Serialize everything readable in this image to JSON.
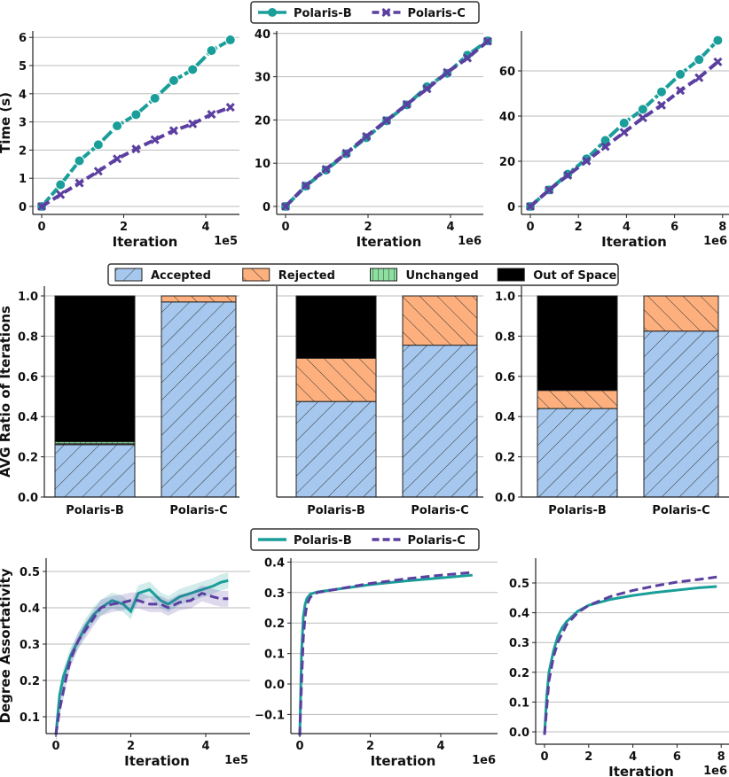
{
  "colors": {
    "Polaris-B": "#1a9e9a",
    "Polaris-C": "#5b3fa0",
    "Accepted": "#a6c8ee",
    "Rejected": "#fdb07e",
    "Unchanged": "#8ee0a0",
    "Out of Space": "#cdb6f5"
  },
  "legends": {
    "row1": [
      "Polaris-B",
      "Polaris-C"
    ],
    "row2": [
      "Accepted",
      "Rejected",
      "Unchanged",
      "Out of Space"
    ],
    "row3": [
      "Polaris-B",
      "Polaris-C"
    ]
  },
  "chart_data": [
    {
      "type": "line",
      "row": 1,
      "xlabel": "Iteration",
      "x_scale_label": "1e5",
      "ylabel": "Time (s)",
      "xticks": [
        "0",
        "2",
        "4"
      ],
      "yticks": [
        "0",
        "1",
        "2",
        "3",
        "4",
        "5",
        "6"
      ],
      "grid": "y",
      "markers": {
        "Polaris-B": "circle",
        "Polaris-C": "x"
      },
      "x": [
        0,
        0.46,
        0.92,
        1.38,
        1.84,
        2.3,
        2.76,
        3.22,
        3.68,
        4.14,
        4.6
      ],
      "series": [
        {
          "name": "Polaris-B",
          "values": [
            0,
            0.77,
            1.62,
            2.19,
            2.86,
            3.26,
            3.84,
            4.47,
            4.86,
            5.53,
            5.91
          ]
        },
        {
          "name": "Polaris-C",
          "values": [
            0,
            0.42,
            0.83,
            1.25,
            1.69,
            2.04,
            2.37,
            2.69,
            2.93,
            3.27,
            3.52
          ]
        }
      ]
    },
    {
      "type": "line",
      "row": 1,
      "xlabel": "Iteration",
      "x_scale_label": "1e6",
      "ylabel": "",
      "xticks": [
        "0",
        "2",
        "4"
      ],
      "yticks": [
        "0",
        "10",
        "20",
        "30",
        "40"
      ],
      "grid": "y",
      "markers": {
        "Polaris-B": "circle",
        "Polaris-C": "x"
      },
      "x": [
        0,
        0.49,
        0.98,
        1.47,
        1.96,
        2.45,
        2.94,
        3.43,
        3.92,
        4.41,
        4.9
      ],
      "series": [
        {
          "name": "Polaris-B",
          "values": [
            0,
            4.7,
            8.4,
            12.2,
            15.9,
            19.8,
            23.5,
            27.7,
            30.8,
            35.0,
            38.3
          ]
        },
        {
          "name": "Polaris-C",
          "values": [
            0,
            4.8,
            8.6,
            12.3,
            16.2,
            19.9,
            23.6,
            27.2,
            31.0,
            34.3,
            38.2
          ]
        }
      ]
    },
    {
      "type": "line",
      "row": 1,
      "xlabel": "Iteration",
      "x_scale_label": "1e6",
      "ylabel": "",
      "xticks": [
        "0",
        "2",
        "4",
        "6",
        "8"
      ],
      "yticks": [
        "0",
        "20",
        "40",
        "60"
      ],
      "grid": "y",
      "markers": {
        "Polaris-B": "circle",
        "Polaris-C": "x"
      },
      "x": [
        0,
        0.78,
        1.56,
        2.34,
        3.12,
        3.9,
        4.68,
        5.46,
        6.24,
        7.02,
        7.8
      ],
      "series": [
        {
          "name": "Polaris-B",
          "values": [
            0,
            7.3,
            14.3,
            21.1,
            29.2,
            36.9,
            43.0,
            50.7,
            58.5,
            65.0,
            73.5
          ]
        },
        {
          "name": "Polaris-C",
          "values": [
            0,
            7.3,
            13.8,
            20.1,
            26.5,
            32.8,
            39.2,
            44.8,
            51.3,
            57.0,
            64.0
          ]
        }
      ]
    },
    {
      "type": "bar",
      "stacked": true,
      "row": 2,
      "ylabel": "AVG Ratio of Iterations",
      "categories": [
        "Polaris-B",
        "Polaris-C"
      ],
      "yticks": [
        "0.0",
        "0.2",
        "0.4",
        "0.6",
        "0.8",
        "1.0"
      ],
      "grid": "y",
      "series": [
        {
          "name": "Accepted",
          "values": [
            0.26,
            0.97
          ]
        },
        {
          "name": "Rejected",
          "values": [
            0.005,
            0.03
          ]
        },
        {
          "name": "Unchanged",
          "values": [
            0.01,
            0
          ]
        },
        {
          "name": "Out of Space",
          "values": [
            0.725,
            0
          ]
        }
      ]
    },
    {
      "type": "bar",
      "stacked": true,
      "row": 2,
      "ylabel": "",
      "categories": [
        "Polaris-B",
        "Polaris-C"
      ],
      "yticks": [],
      "grid": "y",
      "series": [
        {
          "name": "Accepted",
          "values": [
            0.475,
            0.755
          ]
        },
        {
          "name": "Rejected",
          "values": [
            0.215,
            0.245
          ]
        },
        {
          "name": "Unchanged",
          "values": [
            0,
            0
          ]
        },
        {
          "name": "Out of Space",
          "values": [
            0.31,
            0
          ]
        }
      ]
    },
    {
      "type": "bar",
      "stacked": true,
      "row": 2,
      "ylabel": "",
      "categories": [
        "Polaris-B",
        "Polaris-C"
      ],
      "yticks": [
        "0.0",
        "0.2",
        "0.4",
        "0.6",
        "0.8",
        "1.0"
      ],
      "grid": "y",
      "series": [
        {
          "name": "Accepted",
          "values": [
            0.44,
            0.825
          ]
        },
        {
          "name": "Rejected",
          "values": [
            0.09,
            0.175
          ]
        },
        {
          "name": "Unchanged",
          "values": [
            0,
            0
          ]
        },
        {
          "name": "Out of Space",
          "values": [
            0.47,
            0
          ]
        }
      ]
    },
    {
      "type": "line",
      "row": 3,
      "xlabel": "Iteration",
      "x_scale_label": "1e5",
      "ylabel": "Degree Assortativity",
      "xticks": [
        "0",
        "2",
        "4"
      ],
      "yticks": [
        "0.1",
        "0.2",
        "0.3",
        "0.4",
        "0.5"
      ],
      "grid": "y",
      "confidence_band": true,
      "x": [
        0,
        0.1,
        0.2,
        0.3,
        0.4,
        0.6,
        0.8,
        1.0,
        1.2,
        1.5,
        1.8,
        2.0,
        2.2,
        2.5,
        2.8,
        3.0,
        3.3,
        3.6,
        3.9,
        4.2,
        4.4,
        4.6
      ],
      "series": [
        {
          "name": "Polaris-B",
          "values": [
            0.05,
            0.16,
            0.21,
            0.24,
            0.27,
            0.31,
            0.35,
            0.38,
            0.4,
            0.42,
            0.41,
            0.39,
            0.44,
            0.45,
            0.42,
            0.41,
            0.43,
            0.44,
            0.45,
            0.46,
            0.47,
            0.475
          ]
        },
        {
          "name": "Polaris-C",
          "values": [
            0.05,
            0.12,
            0.17,
            0.22,
            0.26,
            0.31,
            0.34,
            0.37,
            0.4,
            0.41,
            0.415,
            0.42,
            0.42,
            0.41,
            0.41,
            0.4,
            0.415,
            0.42,
            0.44,
            0.43,
            0.425,
            0.425
          ]
        }
      ]
    },
    {
      "type": "line",
      "row": 3,
      "xlabel": "Iteration",
      "x_scale_label": "1e6",
      "ylabel": "",
      "xticks": [
        "0",
        "2",
        "4"
      ],
      "yticks": [
        "−0.1",
        "0.0",
        "0.1",
        "0.2",
        "0.3",
        "0.4"
      ],
      "grid": "y",
      "x": [
        0,
        0.05,
        0.1,
        0.15,
        0.2,
        0.3,
        0.5,
        1,
        1.5,
        2,
        2.5,
        3,
        3.5,
        4,
        4.5,
        4.9
      ],
      "series": [
        {
          "name": "Polaris-B",
          "values": [
            -0.17,
            0.1,
            0.22,
            0.26,
            0.28,
            0.295,
            0.302,
            0.31,
            0.318,
            0.326,
            0.332,
            0.338,
            0.343,
            0.348,
            0.353,
            0.357
          ]
        },
        {
          "name": "Polaris-C",
          "values": [
            -0.17,
            0.0,
            0.15,
            0.22,
            0.26,
            0.285,
            0.3,
            0.31,
            0.32,
            0.33,
            0.337,
            0.345,
            0.351,
            0.357,
            0.362,
            0.366
          ]
        }
      ]
    },
    {
      "type": "line",
      "row": 3,
      "xlabel": "Iteration",
      "x_scale_label": "1e6",
      "ylabel": "",
      "xticks": [
        "0",
        "2",
        "4",
        "6",
        "8"
      ],
      "yticks": [
        "0.0",
        "0.1",
        "0.2",
        "0.3",
        "0.4",
        "0.5"
      ],
      "grid": "y",
      "x": [
        0,
        0.1,
        0.2,
        0.4,
        0.6,
        0.8,
        1.0,
        1.5,
        2,
        3,
        4,
        5,
        6,
        7,
        7.8
      ],
      "series": [
        {
          "name": "Polaris-B",
          "values": [
            -0.01,
            0.12,
            0.2,
            0.27,
            0.32,
            0.35,
            0.37,
            0.405,
            0.425,
            0.445,
            0.458,
            0.468,
            0.476,
            0.484,
            0.488
          ]
        },
        {
          "name": "Polaris-C",
          "values": [
            -0.01,
            0.08,
            0.17,
            0.25,
            0.3,
            0.33,
            0.36,
            0.4,
            0.425,
            0.455,
            0.475,
            0.49,
            0.503,
            0.512,
            0.52
          ]
        }
      ]
    }
  ]
}
